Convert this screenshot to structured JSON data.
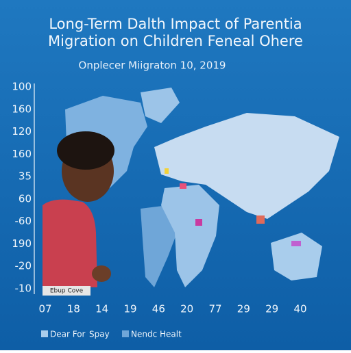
{
  "header": {
    "title_lines": [
      "Long-Term Dalth Impact of Parentia",
      "Migration on Children Feneal Ohere"
    ],
    "subtitle": "Onplecer Miigraton 10, 2019"
  },
  "y_axis_labels": [
    "100",
    "160",
    "120",
    "160",
    "35",
    "60",
    "-60",
    "190",
    "-20",
    "-10"
  ],
  "x_axis_labels": [
    "07",
    "18",
    "14",
    "19",
    "46",
    "20",
    "77",
    "29",
    "29",
    "40"
  ],
  "photo_caption": "Ebup Cove",
  "legend": [
    "Dear For",
    "Spay",
    "Nendc Healt"
  ]
}
